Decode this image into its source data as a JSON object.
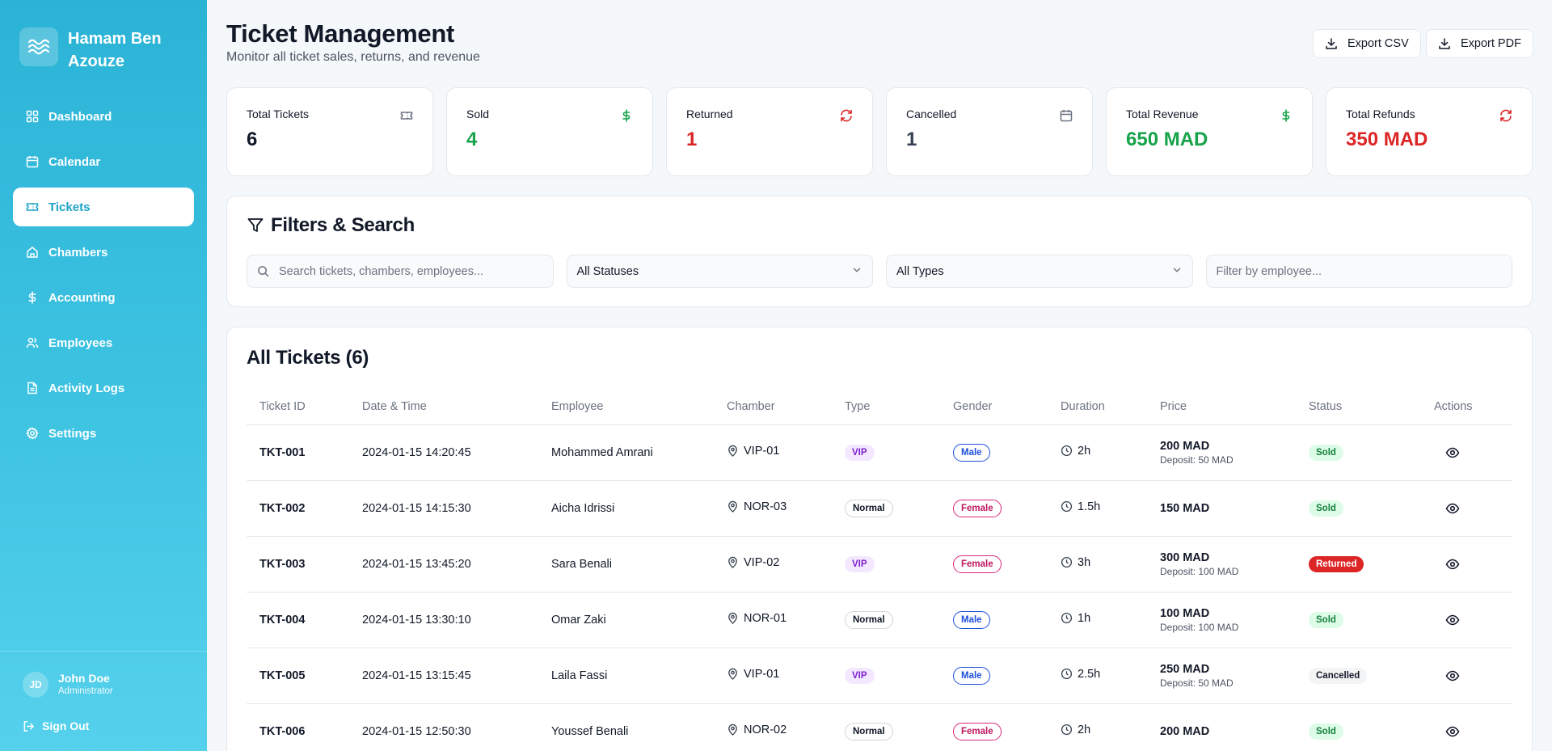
{
  "brand": {
    "name": "Hamam Ben Azouze",
    "logo_icon": "waves-icon"
  },
  "nav": {
    "items": [
      {
        "label": "Dashboard",
        "icon": "dashboard-icon",
        "active": false
      },
      {
        "label": "Calendar",
        "icon": "calendar-icon",
        "active": false
      },
      {
        "label": "Tickets",
        "icon": "ticket-icon",
        "active": true
      },
      {
        "label": "Chambers",
        "icon": "home-icon",
        "active": false
      },
      {
        "label": "Accounting",
        "icon": "dollar-icon",
        "active": false
      },
      {
        "label": "Employees",
        "icon": "users-icon",
        "active": false
      },
      {
        "label": "Activity Logs",
        "icon": "file-icon",
        "active": false
      },
      {
        "label": "Settings",
        "icon": "gear-icon",
        "active": false
      }
    ]
  },
  "user": {
    "initials": "JD",
    "name": "John Doe",
    "role": "Administrator",
    "signout": "Sign Out"
  },
  "header": {
    "title": "Ticket Management",
    "subtitle": "Monitor all ticket sales, returns, and revenue",
    "export_csv": "Export CSV",
    "export_pdf": "Export PDF"
  },
  "stats": [
    {
      "label": "Total Tickets",
      "value": "6",
      "color": "#111827",
      "icon": "ticket-icon"
    },
    {
      "label": "Sold",
      "value": "4",
      "color": "#16a34a",
      "icon": "dollar-icon"
    },
    {
      "label": "Returned",
      "value": "1",
      "color": "#dc2626",
      "icon": "refresh-icon"
    },
    {
      "label": "Cancelled",
      "value": "1",
      "color": "#374151",
      "icon": "calendar-icon"
    },
    {
      "label": "Total Revenue",
      "value": "650 MAD",
      "color": "#16a34a",
      "icon": "dollar-icon"
    },
    {
      "label": "Total Refunds",
      "value": "350 MAD",
      "color": "#dc2626",
      "icon": "refresh-icon"
    }
  ],
  "filters": {
    "title": "Filters & Search",
    "search_placeholder": "Search tickets, chambers, employees...",
    "status_value": "All Statuses",
    "type_value": "All Types",
    "employee_placeholder": "Filter by employee..."
  },
  "tickets": {
    "title": "All Tickets (6)",
    "columns": [
      "Ticket ID",
      "Date & Time",
      "Employee",
      "Chamber",
      "Type",
      "Gender",
      "Duration",
      "Price",
      "Status",
      "Actions"
    ],
    "rows": [
      {
        "id": "TKT-001",
        "datetime": "2024-01-15 14:20:45",
        "employee": "Mohammed Amrani",
        "chamber": "VIP-01",
        "type": "VIP",
        "gender": "Male",
        "duration": "2h",
        "price": "200 MAD",
        "deposit": "Deposit: 50 MAD",
        "status": "Sold"
      },
      {
        "id": "TKT-002",
        "datetime": "2024-01-15 14:15:30",
        "employee": "Aicha Idrissi",
        "chamber": "NOR-03",
        "type": "Normal",
        "gender": "Female",
        "duration": "1.5h",
        "price": "150 MAD",
        "deposit": "",
        "status": "Sold"
      },
      {
        "id": "TKT-003",
        "datetime": "2024-01-15 13:45:20",
        "employee": "Sara Benali",
        "chamber": "VIP-02",
        "type": "VIP",
        "gender": "Female",
        "duration": "3h",
        "price": "300 MAD",
        "deposit": "Deposit: 100 MAD",
        "status": "Returned"
      },
      {
        "id": "TKT-004",
        "datetime": "2024-01-15 13:30:10",
        "employee": "Omar Zaki",
        "chamber": "NOR-01",
        "type": "Normal",
        "gender": "Male",
        "duration": "1h",
        "price": "100 MAD",
        "deposit": "Deposit: 100 MAD",
        "status": "Sold"
      },
      {
        "id": "TKT-005",
        "datetime": "2024-01-15 13:15:45",
        "employee": "Laila Fassi",
        "chamber": "VIP-01",
        "type": "VIP",
        "gender": "Male",
        "duration": "2.5h",
        "price": "250 MAD",
        "deposit": "Deposit: 50 MAD",
        "status": "Cancelled"
      },
      {
        "id": "TKT-006",
        "datetime": "2024-01-15 12:50:30",
        "employee": "Youssef Benali",
        "chamber": "NOR-02",
        "type": "Normal",
        "gender": "Female",
        "duration": "2h",
        "price": "200 MAD",
        "deposit": "",
        "status": "Sold"
      }
    ]
  }
}
